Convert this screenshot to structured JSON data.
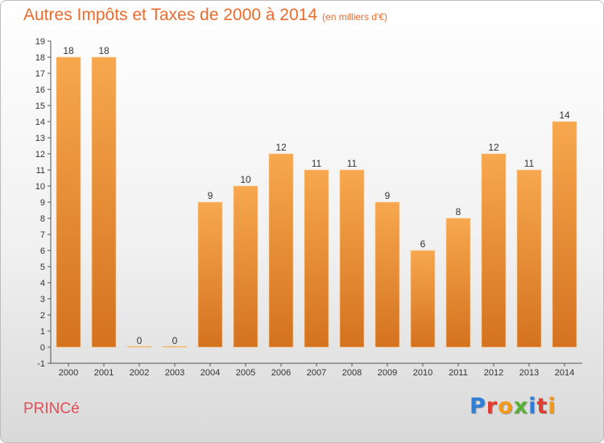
{
  "header": {
    "title": "Autres Impôts et Taxes de 2000 à 2014",
    "unit": "(en milliers d'€)"
  },
  "footer": {
    "place": "PRINCé",
    "brand": "Proxiti",
    "brand_colors": [
      "#2f7fd8",
      "#e23b2f",
      "#f39a1c",
      "#58b137",
      "#2f7fd8",
      "#e23b2f",
      "#f39a1c"
    ]
  },
  "chart_data": {
    "type": "bar",
    "categories": [
      "2000",
      "2001",
      "2002",
      "2003",
      "2004",
      "2005",
      "2006",
      "2007",
      "2008",
      "2009",
      "2010",
      "2011",
      "2012",
      "2013",
      "2014"
    ],
    "values": [
      18,
      18,
      0,
      0,
      9,
      10,
      12,
      11,
      11,
      9,
      6,
      8,
      12,
      11,
      14
    ],
    "value_labels": [
      "18",
      "18",
      "0",
      "0",
      "9",
      "10",
      "12",
      "11",
      "11",
      "9",
      "6",
      "8",
      "12",
      "11",
      "14"
    ],
    "ylim": [
      -1,
      19
    ],
    "yticks": [
      "-1",
      "0",
      "1",
      "2",
      "3",
      "4",
      "5",
      "6",
      "7",
      "8",
      "9",
      "10",
      "11",
      "12",
      "13",
      "14",
      "15",
      "16",
      "17",
      "18",
      "19"
    ],
    "grid": false,
    "bar_color_top": "#f7a84e",
    "bar_color_bottom": "#d4721f",
    "title_color": "#ec6b2d"
  }
}
